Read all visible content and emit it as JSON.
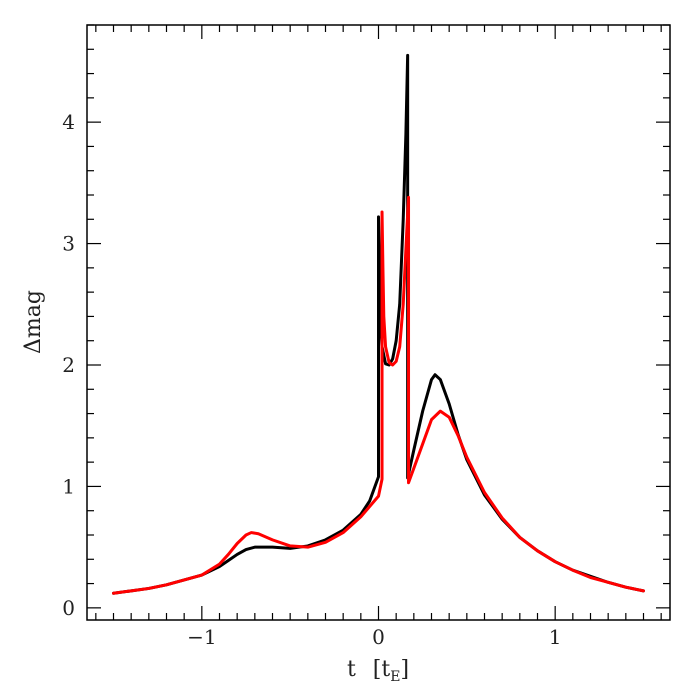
{
  "chart_data": {
    "type": "line",
    "xlabel": "t",
    "xlabel_bracket_open": "[t",
    "xlabel_subscript": "E",
    "xlabel_bracket_close": "]",
    "ylabel": "Δmag",
    "xlim": [
      -1.65,
      1.65
    ],
    "ylim": [
      -0.1,
      4.8
    ],
    "x_ticks": [
      -1,
      0,
      1
    ],
    "x_tick_labels": [
      "−1",
      "0",
      "1"
    ],
    "y_ticks": [
      0,
      1,
      2,
      3,
      4
    ],
    "y_tick_labels": [
      "0",
      "1",
      "2",
      "3",
      "4"
    ],
    "x_minor_step": 0.1,
    "y_minor_step": 0.2,
    "grid": false,
    "series": [
      {
        "color": "#000000",
        "points": [
          [
            -1.5,
            0.12
          ],
          [
            -1.4,
            0.14
          ],
          [
            -1.3,
            0.16
          ],
          [
            -1.2,
            0.19
          ],
          [
            -1.1,
            0.23
          ],
          [
            -1.0,
            0.27
          ],
          [
            -0.9,
            0.34
          ],
          [
            -0.85,
            0.39
          ],
          [
            -0.8,
            0.44
          ],
          [
            -0.75,
            0.48
          ],
          [
            -0.7,
            0.5
          ],
          [
            -0.6,
            0.5
          ],
          [
            -0.5,
            0.49
          ],
          [
            -0.4,
            0.51
          ],
          [
            -0.3,
            0.56
          ],
          [
            -0.2,
            0.64
          ],
          [
            -0.1,
            0.77
          ],
          [
            -0.05,
            0.88
          ],
          [
            0.0,
            1.08
          ],
          [
            0.0,
            3.22
          ],
          [
            0.005,
            2.8
          ],
          [
            0.01,
            2.4
          ],
          [
            0.02,
            2.15
          ],
          [
            0.04,
            2.01
          ],
          [
            0.06,
            2.0
          ],
          [
            0.08,
            2.05
          ],
          [
            0.1,
            2.2
          ],
          [
            0.12,
            2.5
          ],
          [
            0.14,
            3.2
          ],
          [
            0.155,
            3.9
          ],
          [
            0.165,
            4.55
          ],
          [
            0.165,
            1.07
          ],
          [
            0.2,
            1.3
          ],
          [
            0.25,
            1.62
          ],
          [
            0.3,
            1.88
          ],
          [
            0.32,
            1.92
          ],
          [
            0.35,
            1.88
          ],
          [
            0.4,
            1.68
          ],
          [
            0.45,
            1.43
          ],
          [
            0.5,
            1.22
          ],
          [
            0.6,
            0.93
          ],
          [
            0.7,
            0.73
          ],
          [
            0.8,
            0.58
          ],
          [
            0.9,
            0.47
          ],
          [
            1.0,
            0.38
          ],
          [
            1.1,
            0.31
          ],
          [
            1.2,
            0.26
          ],
          [
            1.3,
            0.21
          ],
          [
            1.4,
            0.17
          ],
          [
            1.5,
            0.14
          ]
        ]
      },
      {
        "color": "#ff0000",
        "points": [
          [
            -1.5,
            0.12
          ],
          [
            -1.4,
            0.14
          ],
          [
            -1.3,
            0.16
          ],
          [
            -1.2,
            0.19
          ],
          [
            -1.1,
            0.23
          ],
          [
            -1.0,
            0.27
          ],
          [
            -0.9,
            0.36
          ],
          [
            -0.85,
            0.44
          ],
          [
            -0.8,
            0.53
          ],
          [
            -0.75,
            0.6
          ],
          [
            -0.72,
            0.62
          ],
          [
            -0.68,
            0.61
          ],
          [
            -0.6,
            0.56
          ],
          [
            -0.5,
            0.51
          ],
          [
            -0.4,
            0.5
          ],
          [
            -0.3,
            0.54
          ],
          [
            -0.2,
            0.62
          ],
          [
            -0.1,
            0.75
          ],
          [
            0.0,
            0.92
          ],
          [
            0.02,
            1.06
          ],
          [
            0.02,
            3.26
          ],
          [
            0.025,
            2.8
          ],
          [
            0.03,
            2.4
          ],
          [
            0.04,
            2.15
          ],
          [
            0.06,
            2.02
          ],
          [
            0.08,
            2.0
          ],
          [
            0.1,
            2.03
          ],
          [
            0.12,
            2.15
          ],
          [
            0.14,
            2.5
          ],
          [
            0.15,
            2.8
          ],
          [
            0.16,
            3.1
          ],
          [
            0.17,
            3.38
          ],
          [
            0.17,
            1.03
          ],
          [
            0.2,
            1.15
          ],
          [
            0.25,
            1.35
          ],
          [
            0.3,
            1.55
          ],
          [
            0.35,
            1.62
          ],
          [
            0.4,
            1.57
          ],
          [
            0.45,
            1.42
          ],
          [
            0.5,
            1.24
          ],
          [
            0.6,
            0.95
          ],
          [
            0.7,
            0.74
          ],
          [
            0.8,
            0.58
          ],
          [
            0.9,
            0.47
          ],
          [
            1.0,
            0.38
          ],
          [
            1.1,
            0.31
          ],
          [
            1.2,
            0.25
          ],
          [
            1.3,
            0.21
          ],
          [
            1.4,
            0.17
          ],
          [
            1.5,
            0.14
          ]
        ]
      }
    ]
  }
}
